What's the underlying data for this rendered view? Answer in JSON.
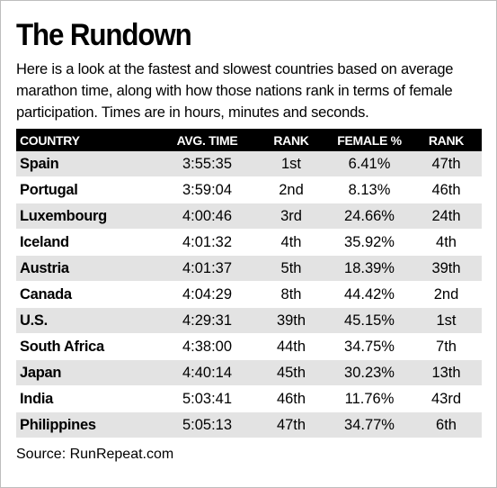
{
  "title": "The Rundown",
  "subtitle": "Here is a look at the fastest and slowest countries based on average marathon time, along with how those nations rank in terms of female participation. Times are in hours, minutes and seconds.",
  "source": "Source: RunRepeat.com",
  "colors": {
    "header_bg": "#000000",
    "header_text": "#ffffff",
    "row_shade": "#e3e3e3",
    "row_plain": "#ffffff"
  },
  "chart_data": {
    "type": "table",
    "title": "The Rundown",
    "columns": [
      "COUNTRY",
      "AVG. TIME",
      "RANK",
      "FEMALE %",
      "RANK"
    ],
    "rows": [
      [
        "Spain",
        "3:55:35",
        "1st",
        "6.41%",
        "47th"
      ],
      [
        "Portugal",
        "3:59:04",
        "2nd",
        "8.13%",
        "46th"
      ],
      [
        "Luxembourg",
        "4:00:46",
        "3rd",
        "24.66%",
        "24th"
      ],
      [
        "Iceland",
        "4:01:32",
        "4th",
        "35.92%",
        "4th"
      ],
      [
        "Austria",
        "4:01:37",
        "5th",
        "18.39%",
        "39th"
      ],
      [
        "Canada",
        "4:04:29",
        "8th",
        "44.42%",
        "2nd"
      ],
      [
        "U.S.",
        "4:29:31",
        "39th",
        "45.15%",
        "1st"
      ],
      [
        "South Africa",
        "4:38:00",
        "44th",
        "34.75%",
        "7th"
      ],
      [
        "Japan",
        "4:40:14",
        "45th",
        "30.23%",
        "13th"
      ],
      [
        "India",
        "5:03:41",
        "46th",
        "11.76%",
        "43rd"
      ],
      [
        "Philippines",
        "5:05:13",
        "47th",
        "34.77%",
        "6th"
      ]
    ]
  }
}
